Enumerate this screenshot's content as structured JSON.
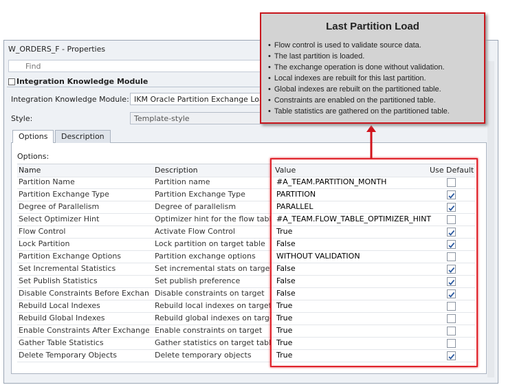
{
  "window": {
    "title": "W_ORDERS_F - Properties",
    "search_placeholder": "Find"
  },
  "section": {
    "title": "Integration Knowledge Module"
  },
  "fields": [
    {
      "label": "Integration Knowledge Module:",
      "value": "IKM Oracle Partition Exchange Load"
    },
    {
      "label": "Style:",
      "value": "Template-style"
    }
  ],
  "tabs": [
    "Options",
    "Description"
  ],
  "active_tab": 0,
  "options": {
    "label": "Options:",
    "columns": [
      "Name",
      "Description",
      "Value",
      "Use Default"
    ],
    "rows": [
      {
        "name": "Partition Name",
        "description": "Partition name",
        "value": "#A_TEAM.PARTITION_MONTH",
        "use_default": false
      },
      {
        "name": "Partition Exchange Type",
        "description": "Partition Exchange Type",
        "value": "PARTITION",
        "use_default": true
      },
      {
        "name": "Degree of Parallelism",
        "description": "Degree of parallelism",
        "value": "PARALLEL",
        "use_default": true
      },
      {
        "name": "Select Optimizer Hint",
        "description": "Optimizer hint for the flow table",
        "value": "#A_TEAM.FLOW_TABLE_OPTIMIZER_HINT",
        "use_default": false
      },
      {
        "name": "Flow Control",
        "description": "Activate Flow Control",
        "value": "True",
        "use_default": true
      },
      {
        "name": "Lock Partition",
        "description": "Lock partition on target table",
        "value": "False",
        "use_default": true
      },
      {
        "name": "Partition Exchange Options",
        "description": "Partition exchange options",
        "value": "WITHOUT VALIDATION",
        "use_default": false
      },
      {
        "name": "Set Incremental Statistics",
        "description": "Set incremental stats on target",
        "value": "False",
        "use_default": true
      },
      {
        "name": "Set Publish Statistics",
        "description": "Set publish preference",
        "value": "False",
        "use_default": true
      },
      {
        "name": "Disable Constraints Before Exchange",
        "description": "Disable constraints on target",
        "value": "False",
        "use_default": true
      },
      {
        "name": "Rebuild Local Indexes",
        "description": "Rebuild local indexes on target",
        "value": "True",
        "use_default": false
      },
      {
        "name": "Rebuild Global Indexes",
        "description": "Rebuild global indexes on target",
        "value": "True",
        "use_default": false
      },
      {
        "name": "Enable Constraints After Exchange",
        "description": "Enable constraints on target",
        "value": "True",
        "use_default": false
      },
      {
        "name": "Gather Table Statistics",
        "description": "Gather statistics on target table",
        "value": "True",
        "use_default": false
      },
      {
        "name": "Delete Temporary Objects",
        "description": "Delete temporary objects",
        "value": "True",
        "use_default": true
      }
    ]
  },
  "callout": {
    "title": "Last Partition Load",
    "bullets": [
      "Flow control is used to validate source data.",
      "The last partition is loaded.",
      "The exchange operation is done without validation.",
      "Local indexes are rebuilt for this last partition.",
      "Global indexes are rebuilt on the partitioned table.",
      "Constraints are enabled on the partitioned table.",
      "Table statistics are gathered on the partitioned table."
    ]
  }
}
